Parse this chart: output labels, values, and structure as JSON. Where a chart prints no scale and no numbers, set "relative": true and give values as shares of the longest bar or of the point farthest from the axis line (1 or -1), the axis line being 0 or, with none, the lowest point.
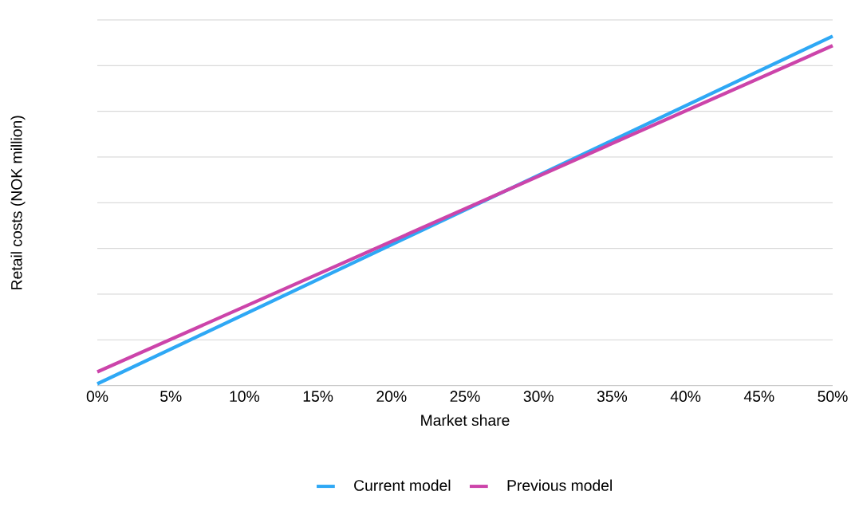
{
  "chart_data": {
    "type": "line",
    "relative": true,
    "xlabel": "Market share",
    "ylabel": "Retail costs (NOK million)",
    "x": [
      0,
      50
    ],
    "xlim": [
      0,
      50
    ],
    "xticks": [
      {
        "value": 0,
        "label": "0%"
      },
      {
        "value": 5,
        "label": "5%"
      },
      {
        "value": 10,
        "label": "10%"
      },
      {
        "value": 15,
        "label": "15%"
      },
      {
        "value": 20,
        "label": "20%"
      },
      {
        "value": 25,
        "label": "25%"
      },
      {
        "value": 30,
        "label": "30%"
      },
      {
        "value": 35,
        "label": "35%"
      },
      {
        "value": 40,
        "label": "40%"
      },
      {
        "value": 45,
        "label": "45%"
      },
      {
        "value": 50,
        "label": "50%"
      }
    ],
    "series": [
      {
        "name": "Current model",
        "color": "#2ea8f5",
        "values": [
          0.005,
          1
        ]
      },
      {
        "name": "Previous model",
        "color": "#cc44aa",
        "values": [
          0.039,
          0.973
        ]
      }
    ],
    "grid": "y",
    "legend": "bottom",
    "marker": "none",
    "line_style": "solid"
  }
}
